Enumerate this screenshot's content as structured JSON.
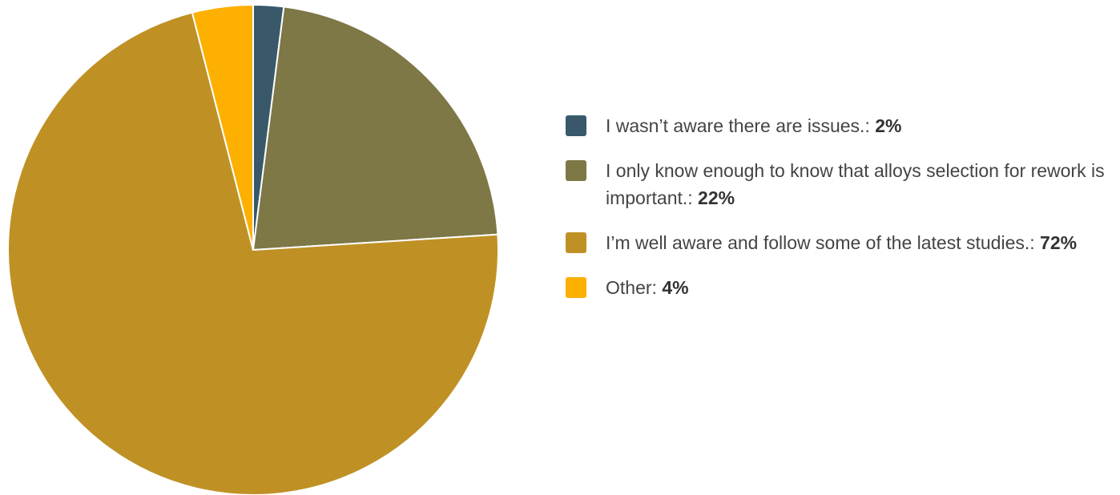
{
  "chart_data": {
    "type": "pie",
    "legend_position": "right",
    "slices": [
      {
        "label": "I wasn’t aware there are issues.",
        "value": 2,
        "value_label": "2%",
        "color": "#39596b"
      },
      {
        "label": "I only know enough to know that alloys selection for rework is important.",
        "value": 22,
        "value_label": "22%",
        "color": "#7e7746"
      },
      {
        "label": "I’m well aware and follow some of the latest studies.",
        "value": 72,
        "value_label": "72%",
        "color": "#bf9125"
      },
      {
        "label": "Other",
        "value": 4,
        "value_label": "4%",
        "color": "#fdb000"
      }
    ]
  }
}
